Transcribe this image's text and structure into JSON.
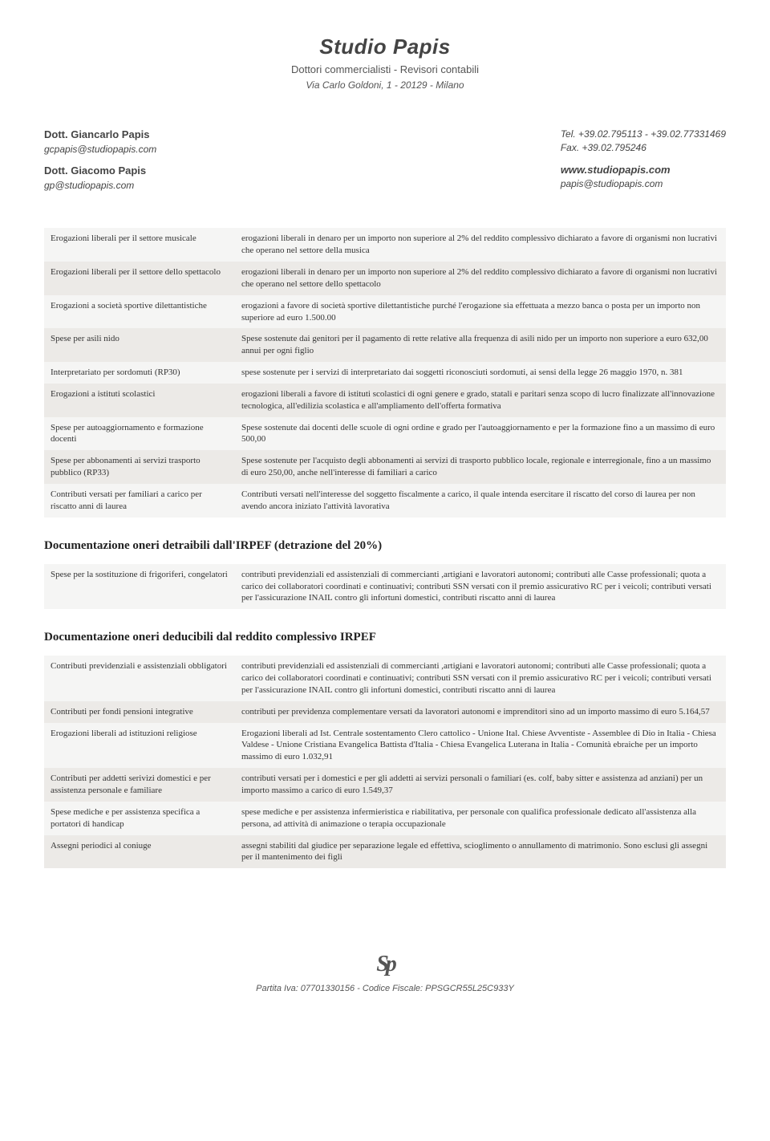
{
  "header": {
    "studio": "Studio Papis",
    "subtitle": "Dottori commercialisti - Revisori contabili",
    "address": "Via Carlo Goldoni, 1 - 20129 - Milano"
  },
  "contact": {
    "person1_name": "Dott. Giancarlo Papis",
    "person1_email": "gcpapis@studiopapis.com",
    "person2_name": "Dott. Giacomo Papis",
    "person2_email": "gp@studiopapis.com",
    "tel": "Tel.  +39.02.795113 - +39.02.77331469",
    "fax": "Fax. +39.02.795246",
    "web": "www.studiopapis.com",
    "webemail": "papis@studiopapis.com"
  },
  "table1": {
    "rows": [
      {
        "label": "Erogazioni liberali per il settore musicale",
        "desc": "erogazioni liberali in denaro per un importo non superiore al 2% del reddito complessivo dichiarato a favore di organismi non lucrativi che operano nel settore della musica"
      },
      {
        "label": "Erogazioni liberali per il settore dello spettacolo",
        "desc": "erogazioni liberali in denaro per un importo non superiore al 2% del reddito complessivo dichiarato a favore di organismi non lucrativi che operano nel settore dello spettacolo"
      },
      {
        "label": "Erogazioni a società sportive dilettantistiche",
        "desc": "erogazioni a favore di società sportive dilettantistiche purché l'erogazione sia effettuata a mezzo banca o posta per un importo non superiore ad euro 1.500.00"
      },
      {
        "label": "Spese per asili nido",
        "desc": "Spese sostenute dai genitori per il pagamento di rette relative alla frequenza di asili nido per un importo non superiore a euro 632,00 annui per ogni figlio"
      },
      {
        "label": "Interpretariato per sordomuti (RP30)",
        "desc": "spese sostenute per i servizi di interpretariato dai soggetti riconosciuti sordomuti, ai sensi della legge 26 maggio 1970, n. 381"
      },
      {
        "label": "Erogazioni a istituti scolastici",
        "desc": "erogazioni liberali a favore di istituti scolastici di ogni genere e grado, statali e paritari senza scopo di lucro finalizzate all'innovazione tecnologica, all'edilizia scolastica e all'ampliamento dell'offerta formativa"
      },
      {
        "label": "Spese per autoaggiornamento e formazione docenti",
        "desc": "Spese sostenute dai docenti delle scuole di ogni ordine e grado per l'autoaggiornamento e per la  formazione fino a un massimo di euro 500,00"
      },
      {
        "label": "Spese per abbonamenti ai servizi trasporto pubblico (RP33)",
        "desc": "Spese sostenute per l'acquisto degli abbonamenti ai servizi di trasporto pubblico locale, regionale e interregionale, fino a un massimo di euro 250,00, anche nell'interesse di familiari a carico"
      },
      {
        "label": "Contributi versati per familiari a carico per riscatto anni di laurea",
        "desc": "Contributi versati nell'interesse del soggetto fiscalmente a carico, il quale intenda esercitare il riscatto del corso di laurea per non avendo ancora iniziato l'attività lavorativa"
      }
    ]
  },
  "section2_title": "Documentazione oneri detraibili dall'IRPEF (detrazione del 20%)",
  "table2": {
    "rows": [
      {
        "label": "Spese per la sostituzione di frigoriferi, congelatori",
        "desc": "contributi previdenziali ed assistenziali di commercianti ,artigiani e lavoratori autonomi; contributi alle Casse professionali; quota a carico dei collaboratori coordinati e continuativi; contributi SSN versati con il premio assicurativo RC per i veicoli; contributi versati per l'assicurazione INAIL contro gli infortuni domestici, contributi riscatto anni di laurea"
      }
    ]
  },
  "section3_title": "Documentazione oneri deducibili dal reddito complessivo IRPEF",
  "table3": {
    "rows": [
      {
        "label": "Contributi previdenziali e assistenziali obbligatori",
        "desc": "contributi previdenziali ed assistenziali di commercianti ,artigiani e lavoratori autonomi; contributi alle Casse professionali; quota a carico dei collaboratori coordinati e continuativi; contributi SSN versati con il premio assicurativo RC per i veicoli; contributi versati per l'assicurazione INAIL contro gli infortuni domestici, contributi riscatto anni di laurea"
      },
      {
        "label": "Contributi per fondi pensioni integrative",
        "desc": "contributi per previdenza complementare versati da lavoratori autonomi e imprenditori sino ad un importo massimo di euro 5.164,57"
      },
      {
        "label": "Erogazioni liberali ad istituzioni religiose",
        "desc": "Erogazioni liberali ad Ist. Centrale sostentamento Clero cattolico - Unione Ital. Chiese Avventiste - Assemblee di Dio in Italia - Chiesa Valdese - Unione Cristiana Evangelica Battista d'Italia - Chiesa Evangelica Luterana in Italia - Comunità ebraiche per un importo massimo di euro 1.032,91"
      },
      {
        "label": "Contributi per addetti serivizi domestici e per assistenza personale e familiare",
        "desc": "contributi versati per i domestici e per gli addetti ai servizi personali o familiari (es. colf, baby sitter e assistenza ad anziani) per un importo massimo a carico di euro 1.549,37"
      },
      {
        "label": "Spese mediche e per assistenza specifica a portatori di handicap",
        "desc": "spese mediche e per assistenza infermieristica e riabilitativa, per personale con qualifica professionale dedicato all'assistenza alla persona, ad attività di animazione o terapia occupazionale"
      },
      {
        "label": "Assegni periodici al coniuge",
        "desc": "assegni stabiliti dal giudice per separazione legale ed effettiva, scioglimento o annullamento di matrimonio. Sono esclusi gli assegni per il mantenimento dei figli"
      }
    ]
  },
  "footer": {
    "logo": "Sp",
    "line": "Partita Iva: 07701330156 - Codice Fiscale: PPSGCR55L25C933Y"
  }
}
